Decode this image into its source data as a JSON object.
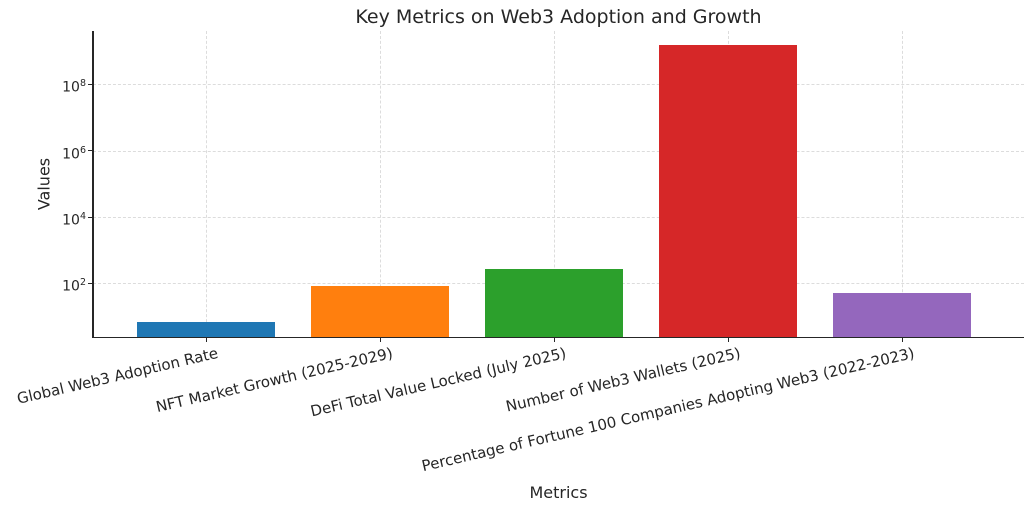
{
  "chart_data": {
    "type": "bar",
    "title": "Key Metrics on Web3 Adoption and Growth",
    "xlabel": "Metrics",
    "ylabel": "Values",
    "categories": [
      "Global Web3 Adoption Rate",
      "NFT Market Growth (2025-2029)",
      "DeFi Total Value Locked (July 2025)",
      "Number of Web3 Wallets (2025)",
      "Percentage of Fortune 100 Companies Adopting Web3 (2022-2023)"
    ],
    "values": [
      6.8,
      84,
      271,
      1500000000,
      52
    ],
    "bar_colors": [
      "#1f77b4",
      "#ff7f0e",
      "#2ca02c",
      "#d62728",
      "#9467bd"
    ],
    "yscale": "log",
    "ylim": [
      2.4,
      4100000000
    ],
    "ytick_exponents": [
      2,
      4,
      6,
      8
    ],
    "ytick_labels": [
      "10²",
      "10⁴",
      "10⁶",
      "10⁸"
    ],
    "grid": true,
    "grid_style": "dashed",
    "legend": false,
    "xtick_rotation_deg": 13
  },
  "colors": {
    "background": "#ffffff",
    "spine": "#262626",
    "grid": "#dcdcdc",
    "text": "#262626"
  }
}
